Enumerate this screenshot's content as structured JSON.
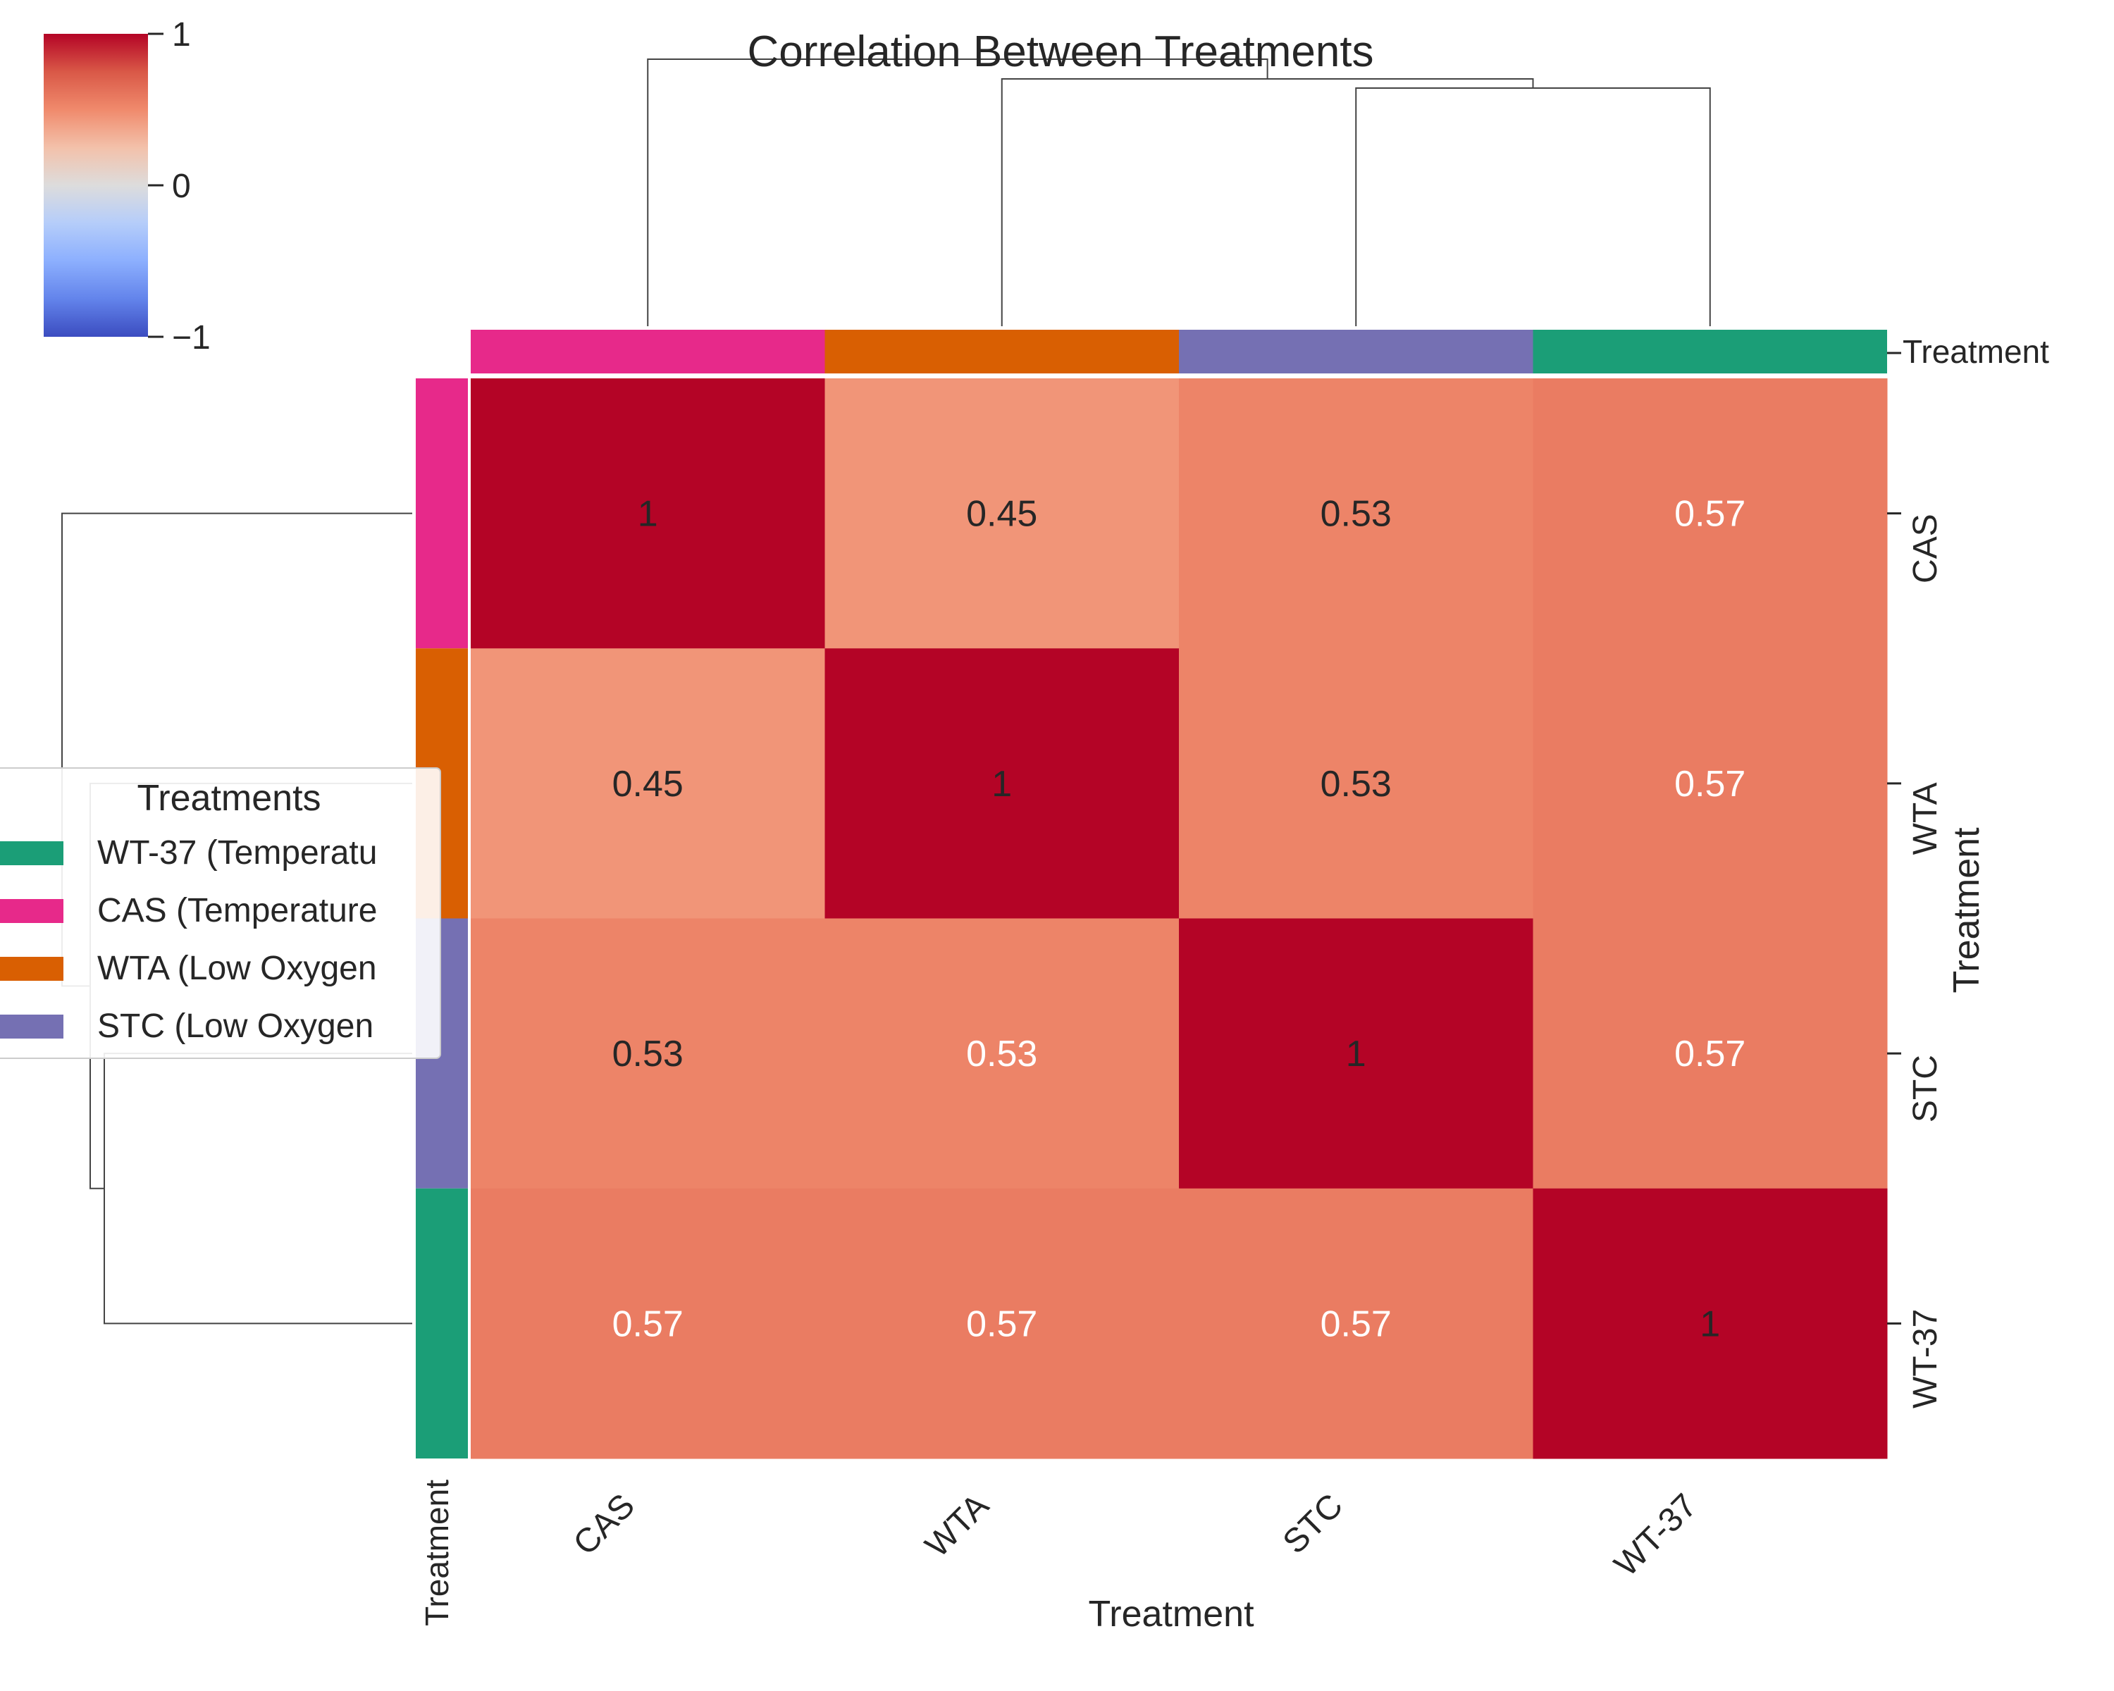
{
  "chart_data": {
    "type": "heatmap",
    "title": "Correlation Between Treatments",
    "xlabel": "Treatment",
    "ylabel": "Treatment",
    "row_colors_label": "Treatment",
    "col_colors_label": "Treatment",
    "categories": [
      "CAS",
      "WTA",
      "STC",
      "WT-37"
    ],
    "values": [
      [
        1,
        0.45,
        0.53,
        0.57
      ],
      [
        0.45,
        1,
        0.53,
        0.57
      ],
      [
        0.53,
        0.53,
        1,
        0.57
      ],
      [
        0.57,
        0.57,
        0.57,
        1
      ]
    ],
    "cell_labels": [
      [
        "1",
        "0.45",
        "0.53",
        "0.57"
      ],
      [
        "0.45",
        "1",
        "0.53",
        "0.57"
      ],
      [
        "0.53",
        "0.53",
        "1",
        "0.57"
      ],
      [
        "0.57",
        "0.57",
        "0.57",
        "1"
      ]
    ],
    "treatment_colors": {
      "CAS": "#e7298a",
      "WTA": "#d95f02",
      "STC": "#7570b3",
      "WT-37": "#1b9e77"
    },
    "colorbar": {
      "colormap": "coolwarm",
      "range": [
        -1,
        1
      ],
      "ticks": [
        1,
        0,
        -1
      ],
      "tick_labels": [
        "1",
        "0",
        "−1"
      ]
    },
    "legend": {
      "title": "Treatments",
      "position": "left",
      "entries": [
        {
          "label": "WT-37 (Temperatu",
          "color": "#1b9e77"
        },
        {
          "label": "CAS (Temperature",
          "color": "#e7298a"
        },
        {
          "label": "WTA (Low Oxygen",
          "color": "#d95f02"
        },
        {
          "label": "STC (Low Oxygen",
          "color": "#7570b3"
        }
      ]
    }
  }
}
